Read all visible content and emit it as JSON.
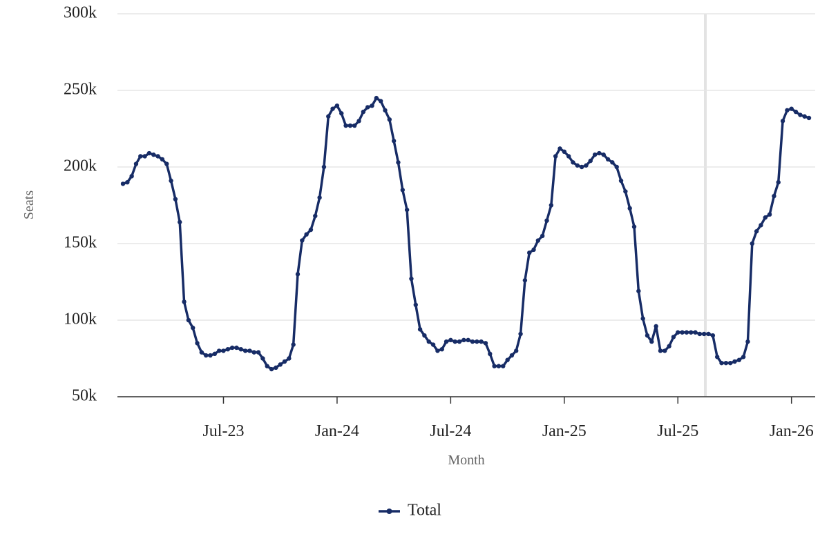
{
  "chart_data": {
    "type": "line",
    "y_label": "Seats",
    "x_label": "Month",
    "categories": [
      null,
      null,
      null,
      null,
      null,
      null,
      null,
      null,
      null,
      null,
      null,
      null,
      null,
      null,
      null,
      null,
      null,
      null,
      null,
      null,
      null,
      null,
      null,
      "Jul-23",
      null,
      null,
      null,
      null,
      null,
      null,
      null,
      null,
      null,
      null,
      null,
      null,
      null,
      null,
      null,
      null,
      null,
      null,
      null,
      null,
      null,
      null,
      null,
      null,
      null,
      "Jan-24",
      null,
      null,
      null,
      null,
      null,
      null,
      null,
      null,
      null,
      null,
      null,
      null,
      null,
      null,
      null,
      null,
      null,
      null,
      null,
      null,
      null,
      null,
      null,
      null,
      null,
      "Jul-24",
      null,
      null,
      null,
      null,
      null,
      null,
      null,
      null,
      null,
      null,
      null,
      null,
      null,
      null,
      null,
      null,
      null,
      null,
      null,
      null,
      null,
      null,
      null,
      null,
      null,
      "Jan-25",
      null,
      null,
      null,
      null,
      null,
      null,
      null,
      null,
      null,
      null,
      null,
      null,
      null,
      null,
      null,
      null,
      null,
      null,
      null,
      null,
      null,
      null,
      null,
      null,
      null,
      "Jul-25",
      null,
      null,
      null,
      null,
      null,
      null,
      null,
      null,
      null,
      null,
      null,
      null,
      null,
      null,
      null,
      null,
      null,
      null,
      null,
      null,
      null,
      null,
      null,
      null,
      null,
      "Jan-26",
      null,
      null,
      null,
      null
    ],
    "series": [
      {
        "name": "Total",
        "color": "#172c66",
        "values": [
          189000,
          190000,
          194000,
          202000,
          207000,
          207000,
          209000,
          208000,
          207000,
          205000,
          202000,
          191000,
          179000,
          164000,
          112000,
          100000,
          95000,
          85000,
          79000,
          77000,
          77000,
          78000,
          80000,
          80000,
          81000,
          82000,
          82000,
          81000,
          80000,
          80000,
          79000,
          79000,
          75000,
          70000,
          68000,
          69000,
          71000,
          73000,
          75000,
          84000,
          130000,
          152000,
          156000,
          159000,
          168000,
          180000,
          200000,
          233000,
          238000,
          240000,
          235000,
          227000,
          227000,
          227000,
          230000,
          236000,
          239000,
          240000,
          245000,
          243000,
          237000,
          231000,
          217000,
          203000,
          185000,
          172000,
          127000,
          110000,
          94000,
          90000,
          86000,
          84000,
          80000,
          81000,
          86000,
          87000,
          86000,
          86000,
          87000,
          87000,
          86000,
          86000,
          86000,
          85000,
          78000,
          70000,
          70000,
          70000,
          74000,
          77000,
          80000,
          91000,
          126000,
          144000,
          146000,
          152000,
          155000,
          165000,
          175000,
          207000,
          212000,
          210000,
          207000,
          203000,
          201000,
          200000,
          201000,
          204000,
          208000,
          209000,
          208000,
          205000,
          203000,
          200000,
          191000,
          184000,
          173000,
          161000,
          119000,
          101000,
          90000,
          86000,
          96000,
          80000,
          80000,
          83000,
          89000,
          92000,
          92000,
          92000,
          92000,
          92000,
          91000,
          91000,
          91000,
          90000,
          76000,
          72000,
          72000,
          72000,
          73000,
          74000,
          76000,
          86000,
          150000,
          158000,
          162000,
          167000,
          169000,
          181000,
          190000,
          230000,
          237000,
          238000,
          236000,
          234000,
          233000,
          232000
        ]
      }
    ],
    "ylim": [
      50000,
      300000
    ],
    "yticks": [
      {
        "value": 50000,
        "label": "50k"
      },
      {
        "value": 100000,
        "label": "100k"
      },
      {
        "value": 150000,
        "label": "150k"
      },
      {
        "value": 200000,
        "label": "200k"
      },
      {
        "value": 250000,
        "label": "250k"
      },
      {
        "value": 300000,
        "label": "300k"
      }
    ],
    "grid": true,
    "legend": "bottom"
  }
}
